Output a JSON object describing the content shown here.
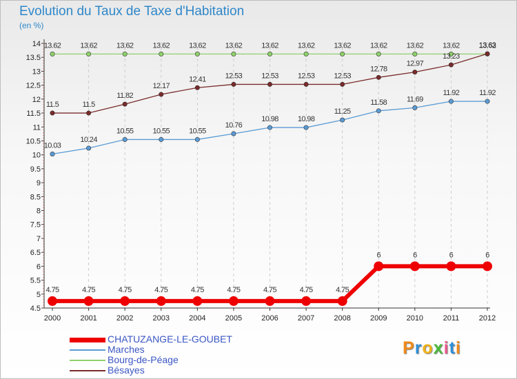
{
  "title": "Evolution du Taux de Taxe d'Habitation",
  "subtitle": "(en %)",
  "logo_text": "Proxiti",
  "colors": {
    "title": "#2e87c9",
    "axis": "#333333",
    "grid": "#cccccc",
    "legend_text": "#3a56c4"
  },
  "chart_data": {
    "type": "line",
    "x": [
      2000,
      2001,
      2002,
      2003,
      2004,
      2005,
      2006,
      2007,
      2008,
      2009,
      2010,
      2011,
      2012
    ],
    "yticks": [
      "4.5",
      "5",
      "5.5",
      "6",
      "6.5",
      "7",
      "7.5",
      "8",
      "8.5",
      "9",
      "9.5",
      "10",
      "10.5",
      "11",
      "11.5",
      "12",
      "12.5",
      "13",
      "13.5",
      "14"
    ],
    "ylim": [
      4.5,
      14
    ],
    "grid": "vertical dashed",
    "legend_position": "bottom-left",
    "series": [
      {
        "name": "CHATUZANGE-LE-GOUBET",
        "color": "#ee0000",
        "values": [
          4.75,
          4.75,
          4.75,
          4.75,
          4.75,
          4.75,
          4.75,
          4.75,
          4.75,
          6,
          6,
          6,
          6
        ],
        "labels": [
          "4.75",
          "4.75",
          "4.75",
          "4.75",
          "4.75",
          "4.75",
          "4.75",
          "4.75",
          "4.75",
          "6",
          "6",
          "6",
          "6"
        ]
      },
      {
        "name": "Marches",
        "color": "#5a9bd5",
        "values": [
          10.03,
          10.24,
          10.55,
          10.55,
          10.55,
          10.76,
          10.98,
          10.98,
          11.25,
          11.58,
          11.69,
          11.92,
          11.92
        ],
        "labels": [
          "10.03",
          "10.24",
          "10.55",
          "10.55",
          "10.55",
          "10.76",
          "10.98",
          "10.98",
          "11.25",
          "11.58",
          "11.69",
          "11.92",
          "11.92"
        ]
      },
      {
        "name": "Bourg-de-Péage",
        "color": "#8fd16a",
        "values": [
          13.62,
          13.62,
          13.62,
          13.62,
          13.62,
          13.62,
          13.62,
          13.62,
          13.62,
          13.62,
          13.62,
          13.62,
          13.62
        ],
        "labels": [
          "13.62",
          "13.62",
          "13.62",
          "13.62",
          "13.62",
          "13.62",
          "13.62",
          "13.62",
          "13.62",
          "13.62",
          "13.62",
          "13.62",
          "13.62"
        ]
      },
      {
        "name": "Bésayes",
        "color": "#7a2a2a",
        "values": [
          11.5,
          11.5,
          11.82,
          12.17,
          12.41,
          12.53,
          12.53,
          12.53,
          12.53,
          12.78,
          12.97,
          13.23,
          13.63
        ],
        "labels": [
          "11.5",
          "11.5",
          "11.82",
          "12.17",
          "12.41",
          "12.53",
          "12.53",
          "12.53",
          "12.53",
          "12.78",
          "12.97",
          "13.23",
          "13.63"
        ]
      }
    ]
  }
}
